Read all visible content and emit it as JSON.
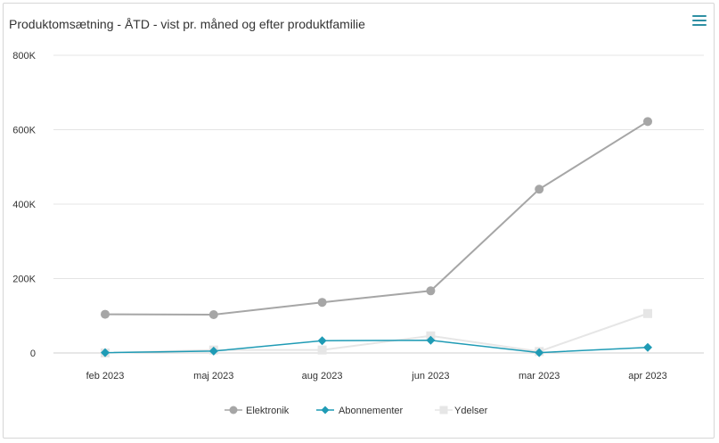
{
  "header": {
    "title": "Produktomsætning - ÅTD - vist pr. måned og efter produktfamilie",
    "menu_icon": "hamburger-menu-icon"
  },
  "chart_data": {
    "type": "line",
    "title": "Produktomsætning - ÅTD - vist pr. måned og efter produktfamilie",
    "xlabel": "",
    "ylabel": "",
    "categories": [
      "feb 2023",
      "maj 2023",
      "aug 2023",
      "jun 2023",
      "mar 2023",
      "apr 2023"
    ],
    "y_ticks": [
      0,
      200000,
      400000,
      600000,
      800000
    ],
    "y_tick_labels": [
      "0",
      "200K",
      "400K",
      "600K",
      "800K"
    ],
    "ylim": [
      0,
      800000
    ],
    "grid": true,
    "legend_position": "bottom",
    "series": [
      {
        "name": "Elektronik",
        "color": "#a6a6a6",
        "marker": "circle",
        "values": [
          104000,
          103000,
          136000,
          167000,
          440000,
          622000
        ]
      },
      {
        "name": "Abonnementer",
        "color": "#1f9bb5",
        "marker": "diamond",
        "values": [
          1000,
          5000,
          33000,
          34000,
          1000,
          15000
        ]
      },
      {
        "name": "Ydelser",
        "color": "#e6e6e6",
        "marker": "square",
        "values": [
          0,
          8000,
          8000,
          46000,
          4000,
          106000
        ]
      }
    ]
  }
}
